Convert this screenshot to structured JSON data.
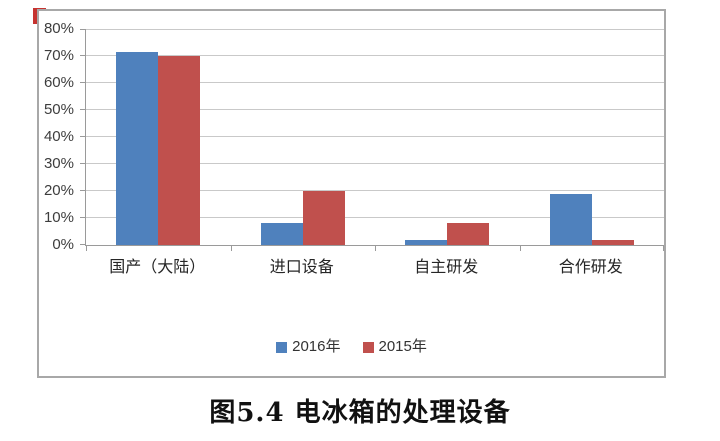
{
  "caption": "图5.4 电冰箱的处理设备",
  "colors": {
    "series_2016": "#4f81bd",
    "series_2015": "#c0504d",
    "frame_border": "#a8a8a8",
    "gridline": "#c9c9c9",
    "axis": "#9a9a9a",
    "tick_label": "#3d3d3d",
    "corner_mark": "#c63330"
  },
  "chart_data": {
    "type": "bar",
    "title": "",
    "xlabel": "",
    "ylabel": "",
    "categories": [
      "国产（大陆）",
      "进口设备",
      "自主研发",
      "合作研发"
    ],
    "series": [
      {
        "name": "2016年",
        "color_key": "series_2016",
        "values": [
          71.5,
          8,
          2,
          19
        ]
      },
      {
        "name": "2015年",
        "color_key": "series_2015",
        "values": [
          70,
          20,
          8,
          2
        ]
      }
    ],
    "ylim": [
      0,
      80
    ],
    "ytick_step": 10,
    "ytick_labels": [
      "0%",
      "10%",
      "20%",
      "30%",
      "40%",
      "50%",
      "60%",
      "70%",
      "80%"
    ],
    "grid": true,
    "legend_position": "bottom"
  }
}
